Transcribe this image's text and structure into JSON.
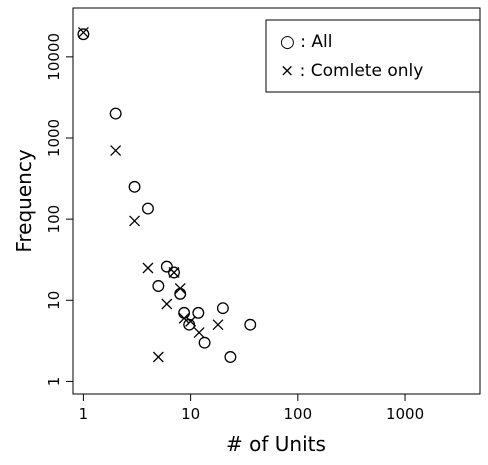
{
  "chart_data": {
    "type": "scatter",
    "title": "",
    "xlabel": "# of Units",
    "ylabel": "Frequency",
    "xscale": "log",
    "yscale": "log",
    "xlim": [
      0.8,
      5000
    ],
    "ylim": [
      0.7,
      40000
    ],
    "xticks": [
      1,
      10,
      100,
      1000
    ],
    "xtick_labels": [
      "1",
      "10",
      "100",
      "1000"
    ],
    "yticks": [
      1,
      10,
      100,
      1000,
      10000
    ],
    "ytick_labels": [
      "1",
      "10",
      "100",
      "1000",
      "10000"
    ],
    "grid": false,
    "legend_position": "top-right",
    "series": [
      {
        "name": "All",
        "marker": "circle",
        "legend_label": "○ : All",
        "points": [
          [
            1,
            19000
          ],
          [
            2,
            2000
          ],
          [
            3,
            250
          ],
          [
            4,
            135
          ],
          [
            5,
            15
          ],
          [
            6,
            26
          ],
          [
            7,
            22
          ],
          [
            8,
            12
          ],
          [
            8.7,
            7
          ],
          [
            9.7,
            5
          ],
          [
            11.8,
            7
          ],
          [
            13.5,
            3
          ],
          [
            20,
            8
          ],
          [
            23.5,
            2
          ],
          [
            36,
            5
          ]
        ]
      },
      {
        "name": "Comlete only",
        "marker": "cross",
        "legend_label": "× : Comlete only",
        "points": [
          [
            1,
            20000
          ],
          [
            2,
            700
          ],
          [
            3,
            95
          ],
          [
            4,
            25
          ],
          [
            5,
            2
          ],
          [
            6,
            9
          ],
          [
            7,
            22
          ],
          [
            8,
            14
          ],
          [
            8.7,
            6
          ],
          [
            10,
            5.5
          ],
          [
            12,
            4
          ],
          [
            18,
            5
          ]
        ]
      }
    ]
  }
}
